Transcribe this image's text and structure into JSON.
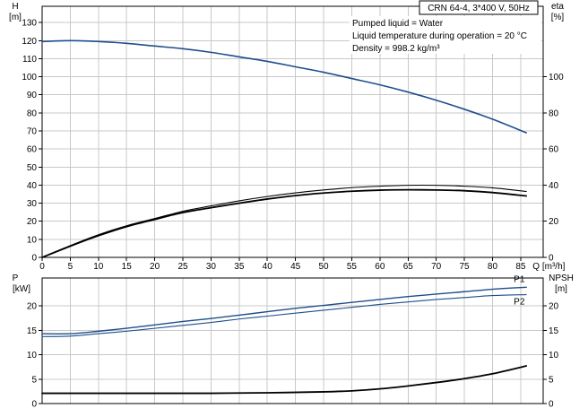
{
  "title_box": "CRN 64-4, 3*400 V, 50Hz",
  "conditions": [
    "Pumped liquid = Water",
    "Liquid temperature during operation = 20 °C",
    "Density = 998.2 kg/m³"
  ],
  "colors": {
    "blue": "#1f4e8c",
    "black": "#000000",
    "grid": "#c8c8c8"
  },
  "chart_data": [
    {
      "type": "line",
      "panel": "top",
      "xlabel": "Q [m³/h]",
      "x_ticks": [
        0,
        5,
        10,
        15,
        20,
        25,
        30,
        35,
        40,
        45,
        50,
        55,
        60,
        65,
        70,
        75,
        80,
        85
      ],
      "xlim": [
        0,
        89
      ],
      "y_left": {
        "label_lines": [
          "H",
          "[m]"
        ],
        "ticks": [
          0,
          10,
          20,
          30,
          40,
          50,
          60,
          70,
          80,
          90,
          100,
          110,
          120,
          130
        ],
        "lim": [
          0,
          139
        ]
      },
      "y_right": {
        "label_lines": [
          "eta",
          "[%]"
        ],
        "ticks": [
          0,
          20,
          40,
          60,
          80,
          100
        ],
        "lim": [
          0,
          139
        ]
      },
      "series": [
        {
          "id": "H",
          "color": "blue",
          "width": 1.6,
          "dashed_until": null,
          "x": [
            0,
            5,
            10,
            15,
            20,
            25,
            30,
            35,
            40,
            45,
            50,
            55,
            60,
            65,
            70,
            75,
            80,
            86
          ],
          "y": [
            119.5,
            120,
            119.5,
            118.5,
            117,
            115.5,
            113.5,
            111,
            108.5,
            105.5,
            102.5,
            99,
            95.5,
            91.5,
            87,
            82,
            76.5,
            69
          ]
        },
        {
          "id": "eta-upper",
          "color": "black",
          "width": 1.1,
          "x": [
            0,
            5,
            10,
            15,
            20,
            25,
            30,
            35,
            40,
            45,
            50,
            55,
            60,
            65,
            70,
            75,
            80,
            86
          ],
          "y": [
            0,
            6.5,
            12.5,
            17.5,
            21.5,
            25.5,
            28.5,
            31.3,
            33.7,
            35.7,
            37.3,
            38.6,
            39.4,
            39.9,
            39.9,
            39.4,
            38.5,
            36.5
          ]
        },
        {
          "id": "eta-lower",
          "color": "black",
          "width": 1.8,
          "x": [
            0,
            5,
            10,
            15,
            20,
            25,
            30,
            35,
            40,
            45,
            50,
            55,
            60,
            65,
            70,
            75,
            80,
            86
          ],
          "y": [
            0,
            6.2,
            12,
            17,
            21,
            24.8,
            27.5,
            30,
            32.3,
            34.2,
            35.6,
            36.6,
            37.2,
            37.4,
            37.3,
            36.9,
            35.9,
            34
          ]
        }
      ]
    },
    {
      "type": "line",
      "panel": "bottom",
      "y_left": {
        "label_lines": [
          "P",
          "[kW]"
        ],
        "ticks": [
          0,
          5,
          10,
          15,
          20
        ],
        "lim": [
          0,
          25.7
        ]
      },
      "y_right": {
        "label_lines": [
          "NPSH",
          "[m]"
        ],
        "ticks": [
          0,
          5,
          10,
          15,
          20
        ],
        "lim": [
          0,
          25.7
        ]
      },
      "xlim": [
        0,
        89
      ],
      "series": [
        {
          "id": "P1",
          "name": "P1",
          "color": "blue",
          "width": 1.4,
          "x": [
            0,
            5,
            10,
            15,
            20,
            25,
            30,
            35,
            40,
            45,
            50,
            55,
            60,
            65,
            70,
            75,
            80,
            86
          ],
          "y": [
            14.3,
            14.3,
            14.8,
            15.4,
            16.1,
            16.8,
            17.4,
            18.1,
            18.8,
            19.5,
            20.1,
            20.7,
            21.3,
            21.9,
            22.4,
            22.9,
            23.4,
            23.8
          ]
        },
        {
          "id": "P2",
          "name": "P2",
          "color": "blue",
          "width": 1.1,
          "x": [
            0,
            5,
            10,
            15,
            20,
            25,
            30,
            35,
            40,
            45,
            50,
            55,
            60,
            65,
            70,
            75,
            80,
            86
          ],
          "y": [
            13.7,
            13.8,
            14.3,
            14.8,
            15.4,
            16.0,
            16.6,
            17.3,
            17.9,
            18.5,
            19.1,
            19.7,
            20.3,
            20.8,
            21.3,
            21.7,
            22.1,
            22.3
          ]
        },
        {
          "id": "NPSH",
          "color": "black",
          "width": 1.8,
          "x": [
            0,
            10,
            20,
            30,
            40,
            50,
            55,
            60,
            65,
            70,
            75,
            80,
            86
          ],
          "y": [
            2.1,
            2.1,
            2.1,
            2.1,
            2.2,
            2.4,
            2.6,
            3.0,
            3.6,
            4.3,
            5.1,
            6.1,
            7.7
          ]
        }
      ]
    }
  ]
}
